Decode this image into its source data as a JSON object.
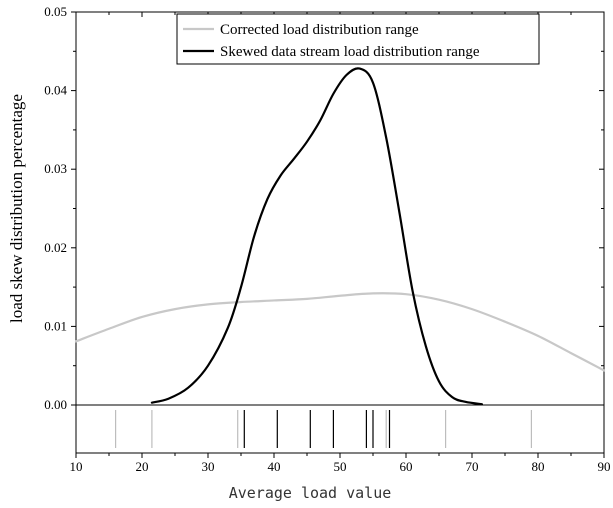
{
  "chart_data": {
    "type": "line",
    "title": "",
    "xlabel": "Average load value",
    "ylabel": "load skew distribution percentage",
    "xlim": [
      10,
      90
    ],
    "ylim": [
      0,
      0.05
    ],
    "x_ticks": [
      "10",
      "20",
      "30",
      "40",
      "50",
      "60",
      "70",
      "80",
      "90"
    ],
    "y_ticks": [
      "0.00",
      "0.01",
      "0.02",
      "0.03",
      "0.04",
      "0.05"
    ],
    "legend_position": "top-center",
    "series": [
      {
        "name": "Corrected load distribution range",
        "color": "#c8c8c8",
        "x": [
          10,
          15,
          20,
          25,
          30,
          35,
          40,
          45,
          50,
          55,
          60,
          65,
          70,
          75,
          80,
          85,
          90
        ],
        "y": [
          0.0081,
          0.0097,
          0.0112,
          0.0122,
          0.0128,
          0.0131,
          0.0133,
          0.0135,
          0.0139,
          0.0142,
          0.0141,
          0.0134,
          0.0122,
          0.0106,
          0.0088,
          0.0066,
          0.0044
        ]
      },
      {
        "name": "Skewed data stream load distribution range",
        "color": "#000000",
        "x": [
          21.5,
          24,
          27,
          30,
          33,
          35,
          37,
          39,
          41,
          43,
          45,
          47,
          49,
          51,
          53,
          55,
          57,
          59,
          61,
          63,
          65,
          67,
          69,
          71.5
        ],
        "y": [
          0.0003,
          0.0008,
          0.0022,
          0.005,
          0.0098,
          0.015,
          0.0215,
          0.0262,
          0.0292,
          0.0313,
          0.0335,
          0.0362,
          0.0396,
          0.042,
          0.0428,
          0.041,
          0.034,
          0.0245,
          0.0145,
          0.0075,
          0.003,
          0.001,
          0.0004,
          0.0001
        ]
      }
    ],
    "rug": {
      "gray": [
        16,
        21.5,
        34.5,
        57,
        66,
        79
      ],
      "black": [
        35.5,
        40.5,
        45.5,
        49,
        54,
        55,
        57.5
      ]
    }
  }
}
